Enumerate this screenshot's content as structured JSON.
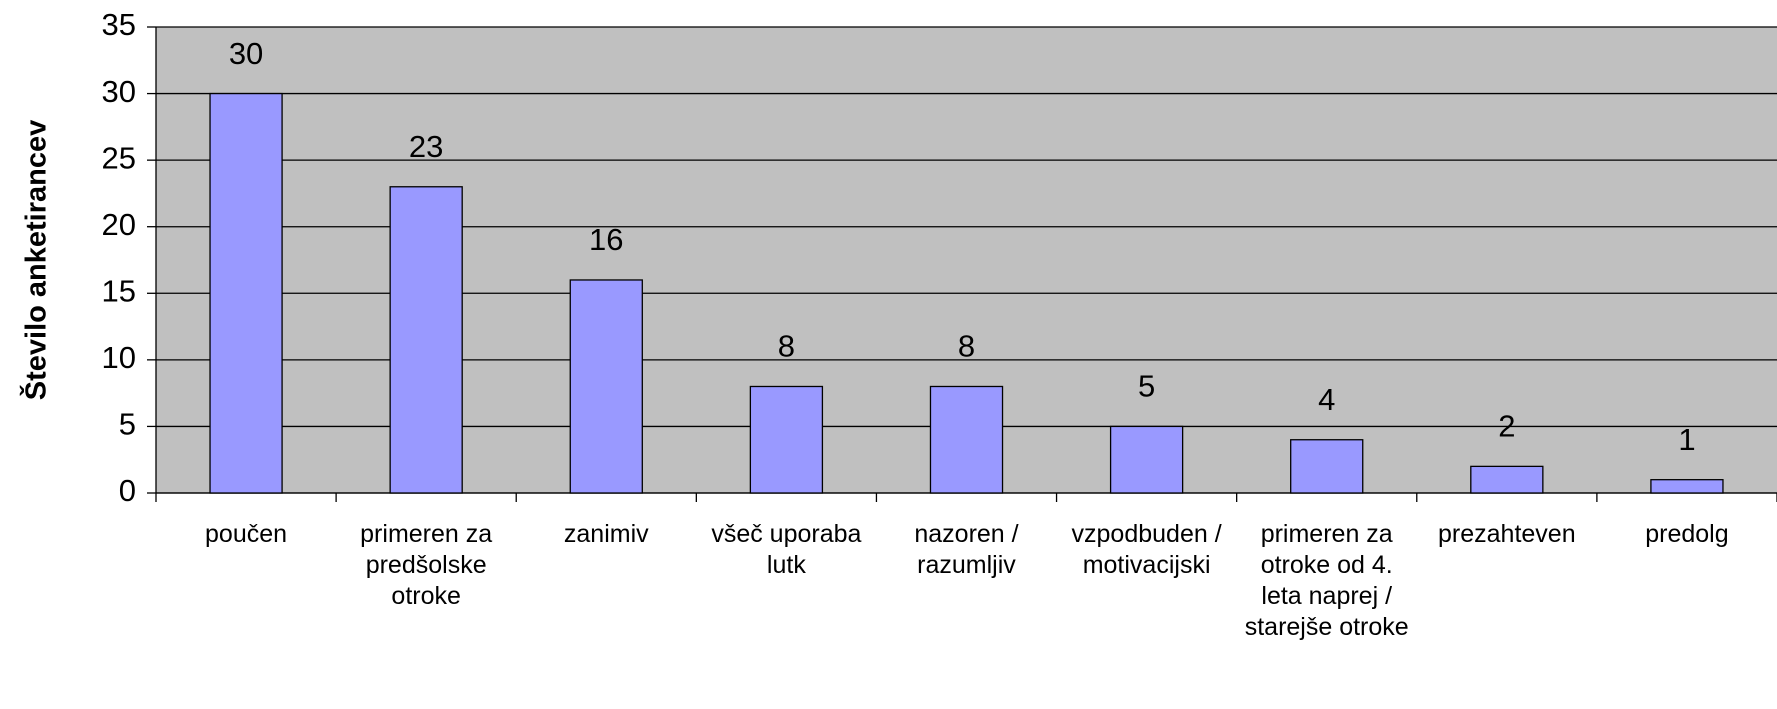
{
  "chart_data": {
    "type": "bar",
    "y_label": "Število anketirancev",
    "categories": [
      "poučen",
      "primeren za predšolske otroke",
      "zanimiv",
      "všeč uporaba lutk",
      "nazoren / razumljiv",
      "vzpodbuden / motivacijski",
      "primeren za otroke od 4. leta naprej / starejše otroke",
      "prezahteven",
      "predolg"
    ],
    "values": [
      30,
      23,
      16,
      8,
      8,
      5,
      4,
      2,
      1
    ],
    "color": "#9999ff",
    "ylim": [
      0,
      35
    ],
    "yticks": [
      0,
      5,
      10,
      15,
      20,
      25,
      30,
      35
    ],
    "grid": true
  }
}
